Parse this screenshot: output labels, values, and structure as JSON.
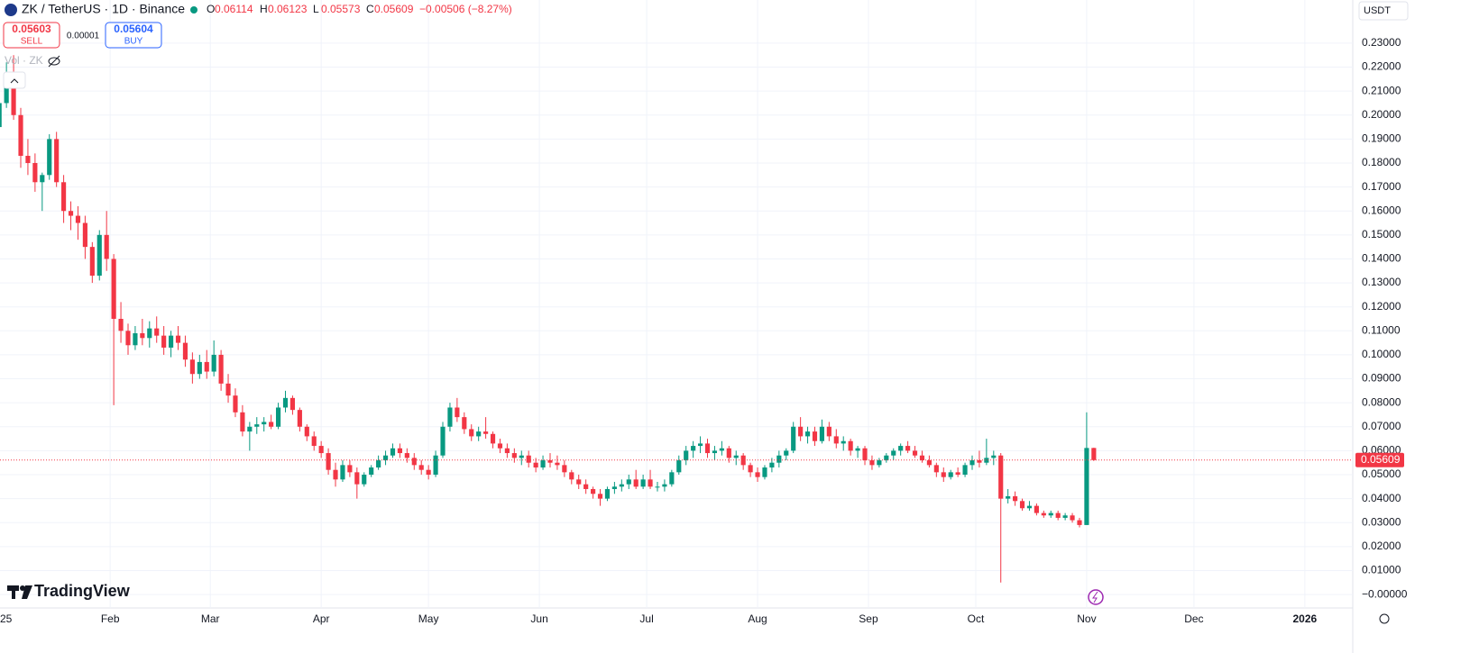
{
  "chart_data": {
    "type": "candlestick",
    "title": "ZK / TetherUS · 1D · Binance",
    "ohlc_labels": [
      "O",
      "H",
      "L",
      "C"
    ],
    "ohlc_values": [
      0.06114,
      0.06123,
      0.05573,
      0.05609
    ],
    "change": "−0.00506 (−8.27%)",
    "sell": {
      "price": 0.05603,
      "label": "SELL"
    },
    "spread": 1e-05,
    "buy": {
      "price": 0.05604,
      "label": "BUY"
    },
    "volume_label": "Vol · ZK",
    "currency": "USDT",
    "brand": "TradingView",
    "up_color": "#089981",
    "down_color": "#f23645",
    "ylim": [
      -0.0056,
      0.248
    ],
    "xlim": [
      0.1,
      189.2
    ],
    "yticks": [
      {
        "value": 0,
        "label": "−0.00000"
      },
      {
        "value": 0.01,
        "label": "0.01000"
      },
      {
        "value": 0.02,
        "label": "0.02000"
      },
      {
        "value": 0.03,
        "label": "0.03000"
      },
      {
        "value": 0.04,
        "label": "0.04000"
      },
      {
        "value": 0.05,
        "label": "0.05000"
      },
      {
        "value": 0.06,
        "label": "0.06000"
      },
      {
        "value": 0.07,
        "label": "0.07000"
      },
      {
        "value": 0.08,
        "label": "0.08000"
      },
      {
        "value": 0.09,
        "label": "0.09000"
      },
      {
        "value": 0.1,
        "label": "0.10000"
      },
      {
        "value": 0.11,
        "label": "0.11000"
      },
      {
        "value": 0.12,
        "label": "0.12000"
      },
      {
        "value": 0.13,
        "label": "0.13000"
      },
      {
        "value": 0.14,
        "label": "0.14000"
      },
      {
        "value": 0.15,
        "label": "0.15000"
      },
      {
        "value": 0.16,
        "label": "0.16000"
      },
      {
        "value": 0.17,
        "label": "0.17000"
      },
      {
        "value": 0.18,
        "label": "0.18000"
      },
      {
        "value": 0.19,
        "label": "0.19000"
      },
      {
        "value": 0.2,
        "label": "0.20000"
      },
      {
        "value": 0.21,
        "label": "0.21000"
      },
      {
        "value": 0.22,
        "label": "0.22000"
      },
      {
        "value": 0.23,
        "label": "0.23000"
      }
    ],
    "xticks": [
      {
        "value": -0.5,
        "label": "25"
      },
      {
        "value": 15.5,
        "label": "Feb"
      },
      {
        "value": 29.5,
        "label": "Mar"
      },
      {
        "value": 45,
        "label": "Apr"
      },
      {
        "value": 60,
        "label": "May"
      },
      {
        "value": 75.5,
        "label": "Jun"
      },
      {
        "value": 90.5,
        "label": "Jul"
      },
      {
        "value": 106,
        "label": "Aug"
      },
      {
        "value": 121.5,
        "label": "Sep"
      },
      {
        "value": 136.5,
        "label": "Oct"
      },
      {
        "value": 152,
        "label": "Nov"
      },
      {
        "value": 167,
        "label": "Dec"
      },
      {
        "value": 182.5,
        "label": "2026"
      }
    ],
    "candles": [
      [
        0.195,
        0.208,
        0.194,
        0.205
      ],
      [
        0.205,
        0.222,
        0.203,
        0.215
      ],
      [
        0.215,
        0.225,
        0.198,
        0.2
      ],
      [
        0.2,
        0.203,
        0.178,
        0.183
      ],
      [
        0.183,
        0.19,
        0.175,
        0.18
      ],
      [
        0.18,
        0.184,
        0.168,
        0.172
      ],
      [
        0.172,
        0.176,
        0.16,
        0.175
      ],
      [
        0.175,
        0.192,
        0.173,
        0.19
      ],
      [
        0.19,
        0.193,
        0.17,
        0.172
      ],
      [
        0.172,
        0.175,
        0.155,
        0.16
      ],
      [
        0.16,
        0.164,
        0.152,
        0.158
      ],
      [
        0.158,
        0.162,
        0.148,
        0.155
      ],
      [
        0.155,
        0.158,
        0.14,
        0.145
      ],
      [
        0.145,
        0.147,
        0.13,
        0.133
      ],
      [
        0.133,
        0.152,
        0.131,
        0.15
      ],
      [
        0.15,
        0.16,
        0.135,
        0.14
      ],
      [
        0.14,
        0.142,
        0.079,
        0.115
      ],
      [
        0.115,
        0.122,
        0.105,
        0.11
      ],
      [
        0.11,
        0.113,
        0.1,
        0.104
      ],
      [
        0.104,
        0.112,
        0.102,
        0.109
      ],
      [
        0.109,
        0.115,
        0.104,
        0.107
      ],
      [
        0.107,
        0.114,
        0.103,
        0.111
      ],
      [
        0.111,
        0.116,
        0.105,
        0.108
      ],
      [
        0.108,
        0.112,
        0.1,
        0.103
      ],
      [
        0.103,
        0.11,
        0.099,
        0.108
      ],
      [
        0.108,
        0.112,
        0.102,
        0.105
      ],
      [
        0.105,
        0.108,
        0.095,
        0.098
      ],
      [
        0.098,
        0.101,
        0.088,
        0.092
      ],
      [
        0.092,
        0.1,
        0.09,
        0.097
      ],
      [
        0.097,
        0.102,
        0.09,
        0.093
      ],
      [
        0.093,
        0.106,
        0.091,
        0.1
      ],
      [
        0.1,
        0.102,
        0.085,
        0.088
      ],
      [
        0.088,
        0.092,
        0.08,
        0.083
      ],
      [
        0.083,
        0.086,
        0.074,
        0.076
      ],
      [
        0.076,
        0.079,
        0.066,
        0.068
      ],
      [
        0.068,
        0.072,
        0.06,
        0.07
      ],
      [
        0.07,
        0.074,
        0.067,
        0.071
      ],
      [
        0.071,
        0.074,
        0.068,
        0.072
      ],
      [
        0.072,
        0.075,
        0.069,
        0.07
      ],
      [
        0.07,
        0.08,
        0.069,
        0.078
      ],
      [
        0.078,
        0.085,
        0.076,
        0.082
      ],
      [
        0.082,
        0.083,
        0.075,
        0.077
      ],
      [
        0.077,
        0.078,
        0.068,
        0.07
      ],
      [
        0.07,
        0.071,
        0.064,
        0.066
      ],
      [
        0.066,
        0.068,
        0.06,
        0.062
      ],
      [
        0.062,
        0.064,
        0.057,
        0.059
      ],
      [
        0.059,
        0.061,
        0.05,
        0.052
      ],
      [
        0.052,
        0.055,
        0.045,
        0.048
      ],
      [
        0.048,
        0.056,
        0.047,
        0.054
      ],
      [
        0.054,
        0.056,
        0.049,
        0.051
      ],
      [
        0.051,
        0.053,
        0.04,
        0.046
      ],
      [
        0.046,
        0.051,
        0.045,
        0.05
      ],
      [
        0.05,
        0.054,
        0.049,
        0.053
      ],
      [
        0.053,
        0.058,
        0.052,
        0.056
      ],
      [
        0.056,
        0.06,
        0.054,
        0.058
      ],
      [
        0.058,
        0.063,
        0.057,
        0.061
      ],
      [
        0.061,
        0.063,
        0.057,
        0.059
      ],
      [
        0.059,
        0.061,
        0.055,
        0.057
      ],
      [
        0.057,
        0.059,
        0.052,
        0.054
      ],
      [
        0.054,
        0.056,
        0.05,
        0.052
      ],
      [
        0.052,
        0.054,
        0.048,
        0.05
      ],
      [
        0.05,
        0.06,
        0.049,
        0.058
      ],
      [
        0.058,
        0.072,
        0.057,
        0.07
      ],
      [
        0.07,
        0.08,
        0.068,
        0.078
      ],
      [
        0.078,
        0.082,
        0.072,
        0.074
      ],
      [
        0.074,
        0.076,
        0.067,
        0.069
      ],
      [
        0.069,
        0.071,
        0.064,
        0.066
      ],
      [
        0.066,
        0.07,
        0.064,
        0.068
      ],
      [
        0.068,
        0.074,
        0.065,
        0.067
      ],
      [
        0.067,
        0.068,
        0.061,
        0.063
      ],
      [
        0.063,
        0.065,
        0.059,
        0.061
      ],
      [
        0.061,
        0.063,
        0.057,
        0.059
      ],
      [
        0.059,
        0.061,
        0.055,
        0.057
      ],
      [
        0.057,
        0.06,
        0.054,
        0.058
      ],
      [
        0.058,
        0.06,
        0.053,
        0.055
      ],
      [
        0.055,
        0.057,
        0.051,
        0.053
      ],
      [
        0.053,
        0.058,
        0.052,
        0.056
      ],
      [
        0.056,
        0.059,
        0.053,
        0.055
      ],
      [
        0.055,
        0.058,
        0.052,
        0.054
      ],
      [
        0.054,
        0.056,
        0.049,
        0.051
      ],
      [
        0.051,
        0.052,
        0.046,
        0.048
      ],
      [
        0.048,
        0.05,
        0.044,
        0.046
      ],
      [
        0.046,
        0.048,
        0.042,
        0.044
      ],
      [
        0.044,
        0.045,
        0.04,
        0.042
      ],
      [
        0.042,
        0.044,
        0.037,
        0.04
      ],
      [
        0.04,
        0.045,
        0.039,
        0.044
      ],
      [
        0.044,
        0.047,
        0.042,
        0.045
      ],
      [
        0.045,
        0.048,
        0.043,
        0.046
      ],
      [
        0.046,
        0.05,
        0.044,
        0.048
      ],
      [
        0.048,
        0.052,
        0.044,
        0.045
      ],
      [
        0.045,
        0.05,
        0.044,
        0.048
      ],
      [
        0.048,
        0.052,
        0.044,
        0.045
      ],
      [
        0.045,
        0.047,
        0.043,
        0.045
      ],
      [
        0.045,
        0.048,
        0.043,
        0.046
      ],
      [
        0.046,
        0.052,
        0.045,
        0.051
      ],
      [
        0.051,
        0.058,
        0.05,
        0.056
      ],
      [
        0.056,
        0.062,
        0.054,
        0.06
      ],
      [
        0.06,
        0.064,
        0.057,
        0.062
      ],
      [
        0.062,
        0.066,
        0.059,
        0.063
      ],
      [
        0.063,
        0.065,
        0.057,
        0.059
      ],
      [
        0.059,
        0.062,
        0.056,
        0.06
      ],
      [
        0.06,
        0.064,
        0.058,
        0.061
      ],
      [
        0.061,
        0.062,
        0.055,
        0.057
      ],
      [
        0.057,
        0.06,
        0.054,
        0.058
      ],
      [
        0.058,
        0.059,
        0.052,
        0.054
      ],
      [
        0.054,
        0.055,
        0.049,
        0.051
      ],
      [
        0.051,
        0.053,
        0.047,
        0.049
      ],
      [
        0.049,
        0.054,
        0.048,
        0.053
      ],
      [
        0.053,
        0.057,
        0.051,
        0.055
      ],
      [
        0.055,
        0.06,
        0.053,
        0.058
      ],
      [
        0.058,
        0.061,
        0.056,
        0.06
      ],
      [
        0.06,
        0.072,
        0.059,
        0.07
      ],
      [
        0.07,
        0.074,
        0.064,
        0.066
      ],
      [
        0.066,
        0.07,
        0.063,
        0.068
      ],
      [
        0.068,
        0.07,
        0.062,
        0.064
      ],
      [
        0.064,
        0.073,
        0.063,
        0.07
      ],
      [
        0.07,
        0.072,
        0.064,
        0.066
      ],
      [
        0.066,
        0.069,
        0.061,
        0.063
      ],
      [
        0.063,
        0.066,
        0.06,
        0.064
      ],
      [
        0.064,
        0.065,
        0.058,
        0.06
      ],
      [
        0.06,
        0.062,
        0.057,
        0.061
      ],
      [
        0.061,
        0.062,
        0.054,
        0.056
      ],
      [
        0.056,
        0.058,
        0.052,
        0.054
      ],
      [
        0.054,
        0.057,
        0.053,
        0.056
      ],
      [
        0.056,
        0.059,
        0.055,
        0.058
      ],
      [
        0.058,
        0.061,
        0.056,
        0.06
      ],
      [
        0.06,
        0.063,
        0.058,
        0.062
      ],
      [
        0.062,
        0.064,
        0.059,
        0.06
      ],
      [
        0.06,
        0.062,
        0.057,
        0.058
      ],
      [
        0.058,
        0.06,
        0.055,
        0.056
      ],
      [
        0.056,
        0.058,
        0.053,
        0.054
      ],
      [
        0.054,
        0.055,
        0.049,
        0.051
      ],
      [
        0.051,
        0.053,
        0.047,
        0.049
      ],
      [
        0.049,
        0.052,
        0.048,
        0.051
      ],
      [
        0.051,
        0.053,
        0.049,
        0.05
      ],
      [
        0.05,
        0.055,
        0.049,
        0.054
      ],
      [
        0.054,
        0.058,
        0.052,
        0.056
      ],
      [
        0.056,
        0.06,
        0.053,
        0.055
      ],
      [
        0.055,
        0.065,
        0.054,
        0.057
      ],
      [
        0.057,
        0.06,
        0.054,
        0.058
      ],
      [
        0.058,
        0.059,
        0.005,
        0.04
      ],
      [
        0.04,
        0.044,
        0.038,
        0.041
      ],
      [
        0.041,
        0.043,
        0.037,
        0.039
      ],
      [
        0.039,
        0.04,
        0.035,
        0.036
      ],
      [
        0.036,
        0.039,
        0.035,
        0.037
      ],
      [
        0.037,
        0.038,
        0.033,
        0.034
      ],
      [
        0.034,
        0.035,
        0.032,
        0.033
      ],
      [
        0.033,
        0.035,
        0.032,
        0.034
      ],
      [
        0.034,
        0.035,
        0.031,
        0.032
      ],
      [
        0.032,
        0.034,
        0.031,
        0.033
      ],
      [
        0.033,
        0.034,
        0.03,
        0.031
      ],
      [
        0.031,
        0.032,
        0.028,
        0.029
      ],
      [
        0.029,
        0.076,
        0.029,
        0.06114
      ],
      [
        0.06114,
        0.06123,
        0.05573,
        0.05609
      ]
    ]
  }
}
